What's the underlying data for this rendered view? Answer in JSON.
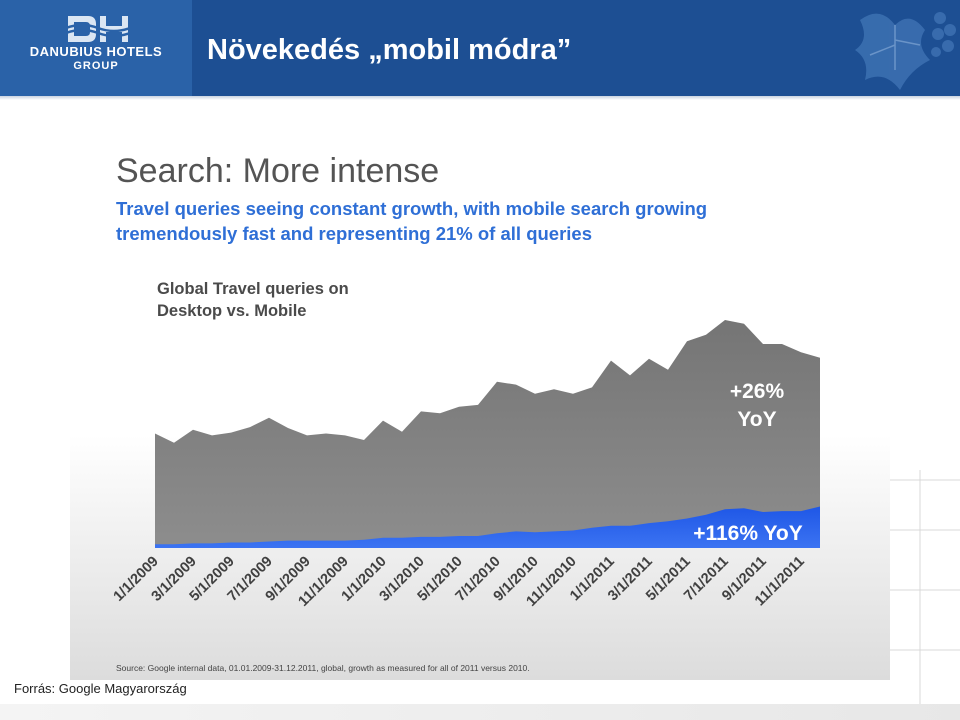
{
  "header": {
    "logo_line1": "DANUBIUS HOTELS",
    "logo_line2": "GROUP",
    "title": "Növekedés „mobil módra”"
  },
  "slide": {
    "heading": "Search: More intense",
    "subheading_line1": "Travel queries seeing constant growth, with mobile search growing",
    "subheading_line2": "tremendously fast and representing 21% of all queries",
    "source_note": "Source: Google internal data, 01.01.2009-31.12.2011, global, growth as measured for all of 2011 versus 2010.",
    "credit": "Forrás: Google Magyarország"
  },
  "chart_data": {
    "type": "area",
    "title_line1": "Global Travel queries on",
    "title_line2": "Desktop vs. Mobile",
    "x": [
      "1/1/2009",
      "2/1/2009",
      "3/1/2009",
      "4/1/2009",
      "5/1/2009",
      "6/1/2009",
      "7/1/2009",
      "8/1/2009",
      "9/1/2009",
      "10/1/2009",
      "11/1/2009",
      "12/1/2009",
      "1/1/2010",
      "2/1/2010",
      "3/1/2010",
      "4/1/2010",
      "5/1/2010",
      "6/1/2010",
      "7/1/2010",
      "8/1/2010",
      "9/1/2010",
      "10/1/2010",
      "11/1/2010",
      "12/1/2010",
      "1/1/2011",
      "2/1/2011",
      "3/1/2011",
      "4/1/2011",
      "5/1/2011",
      "6/1/2011",
      "7/1/2011",
      "8/1/2011",
      "9/1/2011",
      "10/1/2011",
      "11/1/2011",
      "12/1/2011"
    ],
    "tick_labels": [
      "1/1/2009",
      "3/1/2009",
      "5/1/2009",
      "7/1/2009",
      "9/1/2009",
      "11/1/2009",
      "1/1/2010",
      "3/1/2010",
      "5/1/2010",
      "7/1/2010",
      "9/1/2010",
      "11/1/2010",
      "1/1/2011",
      "3/1/2011",
      "5/1/2011",
      "7/1/2011",
      "9/1/2011",
      "11/1/2011"
    ],
    "series": [
      {
        "name": "Desktop",
        "color": "#7f7f7f",
        "values": [
          124,
          114,
          128,
          122,
          125,
          131,
          141,
          130,
          122,
          124,
          122,
          117,
          138,
          126,
          148,
          146,
          153,
          155,
          180,
          177,
          167,
          172,
          167,
          174,
          203,
          187,
          205,
          193,
          224,
          231,
          247,
          243,
          221,
          221,
          212,
          206
        ]
      },
      {
        "name": "Mobile",
        "color": "#1f57e6",
        "values": [
          4,
          4,
          5,
          5,
          6,
          6,
          7,
          8,
          8,
          8,
          8,
          9,
          11,
          11,
          12,
          12,
          13,
          13,
          16,
          18,
          17,
          18,
          19,
          22,
          24,
          24,
          27,
          29,
          32,
          36,
          42,
          43,
          39,
          40,
          40,
          45
        ]
      }
    ],
    "ylim": [
      0,
      260
    ],
    "annotations": [
      "+26%",
      "YoY",
      "+116% YoY"
    ]
  }
}
